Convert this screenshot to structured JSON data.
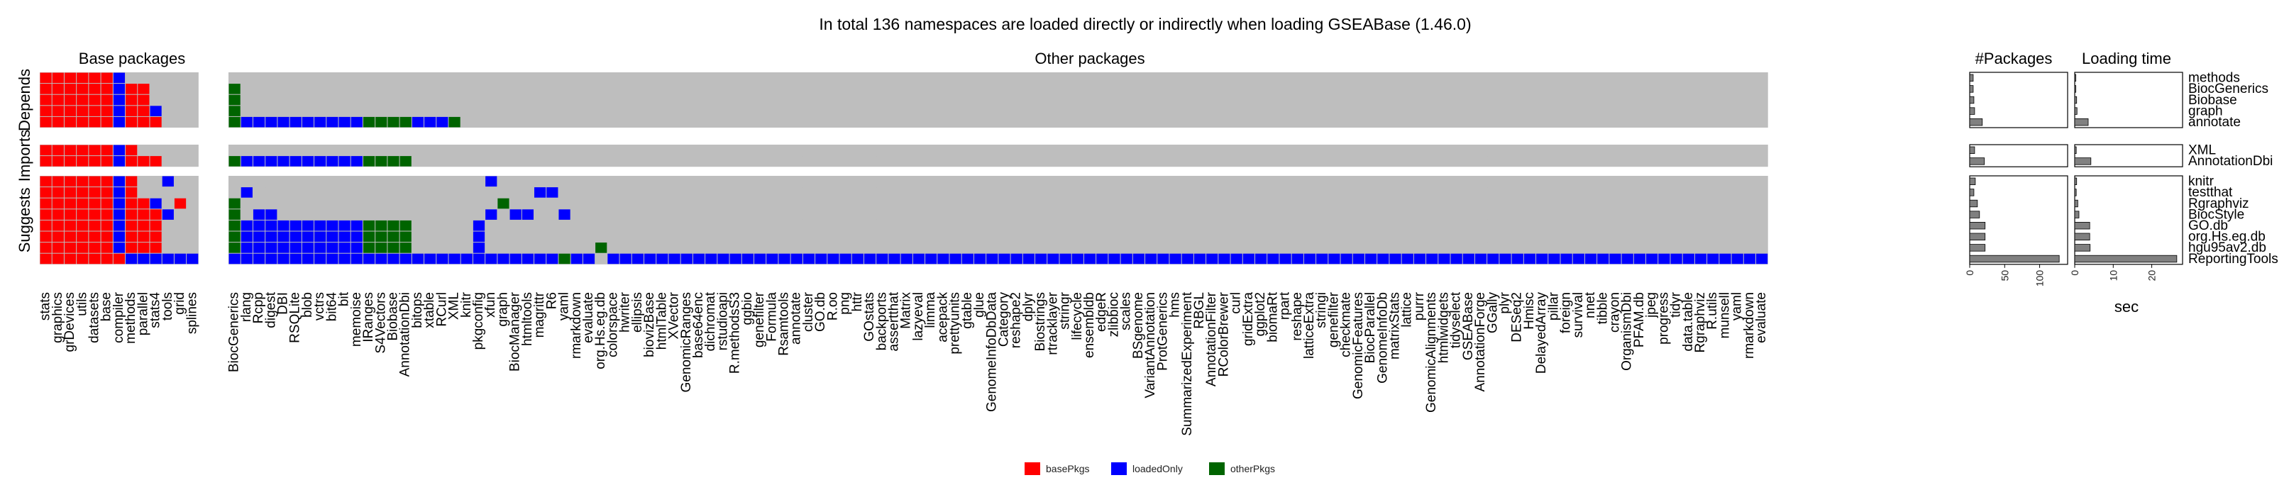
{
  "chart_data": {
    "type": "heatmap",
    "title": "In total 136 namespaces are loaded directly or indirectly when loading GSEABase (1.46.0)",
    "panel_titles": {
      "base": "Base packages",
      "other": "Other packages",
      "count": "#Packages",
      "time": "Loading time"
    },
    "time_axis_label": "sec",
    "row_groups": [
      "Depends",
      "Imports",
      "Suggests"
    ],
    "rows": [
      {
        "name": "methods",
        "group": "Depends"
      },
      {
        "name": "BiocGenerics",
        "group": "Depends"
      },
      {
        "name": "Biobase",
        "group": "Depends"
      },
      {
        "name": "graph",
        "group": "Depends"
      },
      {
        "name": "annotate",
        "group": "Depends"
      },
      {
        "name": "XML",
        "group": "Imports"
      },
      {
        "name": "AnnotationDbi",
        "group": "Imports"
      },
      {
        "name": "knitr",
        "group": "Suggests"
      },
      {
        "name": "testthat",
        "group": "Suggests"
      },
      {
        "name": "Rgraphviz",
        "group": "Suggests"
      },
      {
        "name": "BiocStyle",
        "group": "Suggests"
      },
      {
        "name": "GO.db",
        "group": "Suggests"
      },
      {
        "name": "org.Hs.eg.db",
        "group": "Suggests"
      },
      {
        "name": "hgu95av2.db",
        "group": "Suggests"
      },
      {
        "name": "ReportingTools",
        "group": "Suggests"
      }
    ],
    "base_columns": [
      "stats",
      "graphics",
      "grDevices",
      "utils",
      "datasets",
      "base",
      "compiler",
      "methods",
      "parallel",
      "stats4",
      "tools",
      "grid",
      "splines"
    ],
    "other_columns": [
      "BiocGenerics",
      "rlang",
      "Rcpp",
      "digest",
      "DBI",
      "RSQLite",
      "blob",
      "vctrs",
      "bit64",
      "bit",
      "memoise",
      "IRanges",
      "S4Vectors",
      "Biobase",
      "AnnotationDbi",
      "bitops",
      "xtable",
      "RCurl",
      "XML",
      "knitr",
      "pkgconfig",
      "xfun",
      "graph",
      "BiocManager",
      "htmltools",
      "magrittr",
      "R6",
      "yaml",
      "rmarkdown",
      "evaluate",
      "org.Hs.eg.db",
      "colorspace",
      "hwriter",
      "ellipsis",
      "biovizBase",
      "htmlTable",
      "XVector",
      "GenomicRanges",
      "base64enc",
      "dichromat",
      "rstudioapi",
      "R.methodsS3",
      "ggbio",
      "genefilter",
      "Formula",
      "Rsamtools",
      "annotate",
      "cluster",
      "GO.db",
      "R.oo",
      "png",
      "httr",
      "GOstats",
      "backports",
      "assertthat",
      "Matrix",
      "lazyeval",
      "limma",
      "acepack",
      "prettyunits",
      "gtable",
      "glue",
      "GenomeInfoDbData",
      "Category",
      "reshape2",
      "dplyr",
      "Biostrings",
      "rtracklayer",
      "stringr",
      "lifecycle",
      "ensembldb",
      "edgeR",
      "zlibbioc",
      "scales",
      "BSgenome",
      "VariantAnnotation",
      "ProtGenerics",
      "hms",
      "SummarizedExperiment",
      "RBGL",
      "AnnotationFilter",
      "RColorBrewer",
      "curl",
      "gridExtra",
      "ggplot2",
      "biomaRt",
      "rpart",
      "reshape",
      "latticeExtra",
      "stringi",
      "genefilter",
      "checkmate",
      "GenomicFeatures",
      "BiocParallel",
      "GenomeInfoDb",
      "matrixStats",
      "lattice",
      "purrr",
      "GenomicAlignments",
      "htmlwidgets",
      "tidyselect",
      "GSEABase",
      "AnnotationForge",
      "GGally",
      "plyr",
      "DESeq2",
      "Hmisc",
      "DelayedArray",
      "pillar",
      "foreign",
      "survival",
      "nnet",
      "tibble",
      "crayon",
      "OrganismDbi",
      "PFAM.db",
      "jpeg",
      "progress",
      "tidyr",
      "data.table",
      "Rgraphviz",
      "R.utils",
      "munsell",
      "yaml",
      "rmarkdown",
      "evaluate"
    ],
    "cell_categories": {
      "0": "none",
      "1": "basePkgs",
      "2": "loadedOnly",
      "3": "otherPkgs"
    },
    "base_matrix": [
      [
        1,
        1,
        1,
        1,
        1,
        1,
        2,
        0,
        0,
        0,
        0,
        0,
        0
      ],
      [
        1,
        1,
        1,
        1,
        1,
        1,
        2,
        1,
        1,
        0,
        0,
        0,
        0
      ],
      [
        1,
        1,
        1,
        1,
        1,
        1,
        2,
        1,
        1,
        0,
        0,
        0,
        0
      ],
      [
        1,
        1,
        1,
        1,
        1,
        1,
        2,
        1,
        1,
        2,
        0,
        0,
        0
      ],
      [
        1,
        1,
        1,
        1,
        1,
        1,
        2,
        1,
        1,
        1,
        0,
        0,
        0
      ],
      [
        1,
        1,
        1,
        1,
        1,
        1,
        2,
        1,
        0,
        0,
        0,
        0,
        0
      ],
      [
        1,
        1,
        1,
        1,
        1,
        1,
        2,
        1,
        1,
        1,
        0,
        0,
        0
      ],
      [
        1,
        1,
        1,
        1,
        1,
        1,
        2,
        1,
        0,
        0,
        2,
        0,
        0
      ],
      [
        1,
        1,
        1,
        1,
        1,
        1,
        2,
        1,
        0,
        0,
        0,
        0,
        0
      ],
      [
        1,
        1,
        1,
        1,
        1,
        1,
        2,
        1,
        1,
        2,
        0,
        1,
        0
      ],
      [
        1,
        1,
        1,
        1,
        1,
        1,
        2,
        1,
        1,
        1,
        2,
        0,
        0
      ],
      [
        1,
        1,
        1,
        1,
        1,
        1,
        2,
        1,
        1,
        1,
        0,
        0,
        0
      ],
      [
        1,
        1,
        1,
        1,
        1,
        1,
        2,
        1,
        1,
        1,
        0,
        0,
        0
      ],
      [
        1,
        1,
        1,
        1,
        1,
        1,
        2,
        1,
        1,
        1,
        0,
        0,
        0
      ],
      [
        1,
        1,
        1,
        1,
        1,
        1,
        1,
        2,
        2,
        2,
        2,
        2,
        2
      ]
    ],
    "other_cells": [
      {
        "row": 1,
        "cols": [
          [
            0,
            0,
            3
          ]
        ]
      },
      {
        "row": 2,
        "cols": [
          [
            0,
            0,
            3
          ]
        ]
      },
      {
        "row": 3,
        "cols": [
          [
            0,
            0,
            3
          ]
        ]
      },
      {
        "row": 4,
        "cols": [
          [
            0,
            0,
            3
          ],
          [
            1,
            10,
            2
          ],
          [
            11,
            14,
            3
          ],
          [
            15,
            17,
            2
          ],
          [
            18,
            18,
            3
          ]
        ]
      },
      {
        "row": 6,
        "cols": [
          [
            0,
            0,
            3
          ],
          [
            1,
            10,
            2
          ],
          [
            11,
            14,
            3
          ]
        ]
      },
      {
        "row": 7,
        "cols": [
          [
            21,
            21,
            2
          ]
        ]
      },
      {
        "row": 8,
        "cols": [
          [
            1,
            1,
            2
          ],
          [
            25,
            26,
            2
          ]
        ]
      },
      {
        "row": 9,
        "cols": [
          [
            0,
            0,
            3
          ],
          [
            22,
            22,
            3
          ]
        ]
      },
      {
        "row": 10,
        "cols": [
          [
            0,
            0,
            3
          ],
          [
            2,
            3,
            2
          ],
          [
            21,
            21,
            2
          ],
          [
            23,
            24,
            2
          ],
          [
            27,
            27,
            2
          ],
          [
            133,
            135,
            2
          ]
        ]
      },
      {
        "row": 11,
        "cols": [
          [
            0,
            0,
            3
          ],
          [
            1,
            10,
            2
          ],
          [
            11,
            14,
            3
          ],
          [
            20,
            20,
            2
          ]
        ]
      },
      {
        "row": 12,
        "cols": [
          [
            0,
            0,
            3
          ],
          [
            1,
            10,
            2
          ],
          [
            11,
            14,
            3
          ],
          [
            20,
            20,
            2
          ]
        ]
      },
      {
        "row": 13,
        "cols": [
          [
            0,
            0,
            3
          ],
          [
            1,
            10,
            2
          ],
          [
            11,
            14,
            3
          ],
          [
            20,
            20,
            2
          ],
          [
            30,
            30,
            3
          ]
        ]
      },
      {
        "row": 14,
        "cols": [
          [
            0,
            0,
            2
          ],
          [
            1,
            26,
            2
          ],
          [
            27,
            27,
            3
          ],
          [
            28,
            29,
            2
          ],
          [
            31,
            131,
            2
          ]
        ]
      }
    ],
    "n_packages": [
      5,
      5,
      6,
      7,
      18,
      7,
      21,
      8,
      6,
      11,
      14,
      22,
      22,
      22,
      128
    ],
    "count_axis": {
      "ticks": [
        0,
        50,
        100
      ],
      "xlim": [
        0,
        140
      ]
    },
    "loading_time_sec": [
      0.3,
      0.3,
      0.5,
      0.6,
      3.5,
      0.4,
      4.2,
      0.5,
      0.4,
      0.8,
      1.1,
      3.9,
      3.9,
      4.0,
      26.5
    ],
    "time_axis": {
      "ticks": [
        0,
        10,
        20
      ],
      "xlim": [
        0,
        28
      ]
    },
    "legend": [
      {
        "label": "basePkgs",
        "color": "#ff0000"
      },
      {
        "label": "loadedOnly",
        "color": "#0000ff"
      },
      {
        "label": "otherPkgs",
        "color": "#006400"
      }
    ],
    "colors": {
      "none": "#bebebe",
      "grid": "#ffffff",
      "bar": "#808080"
    }
  }
}
